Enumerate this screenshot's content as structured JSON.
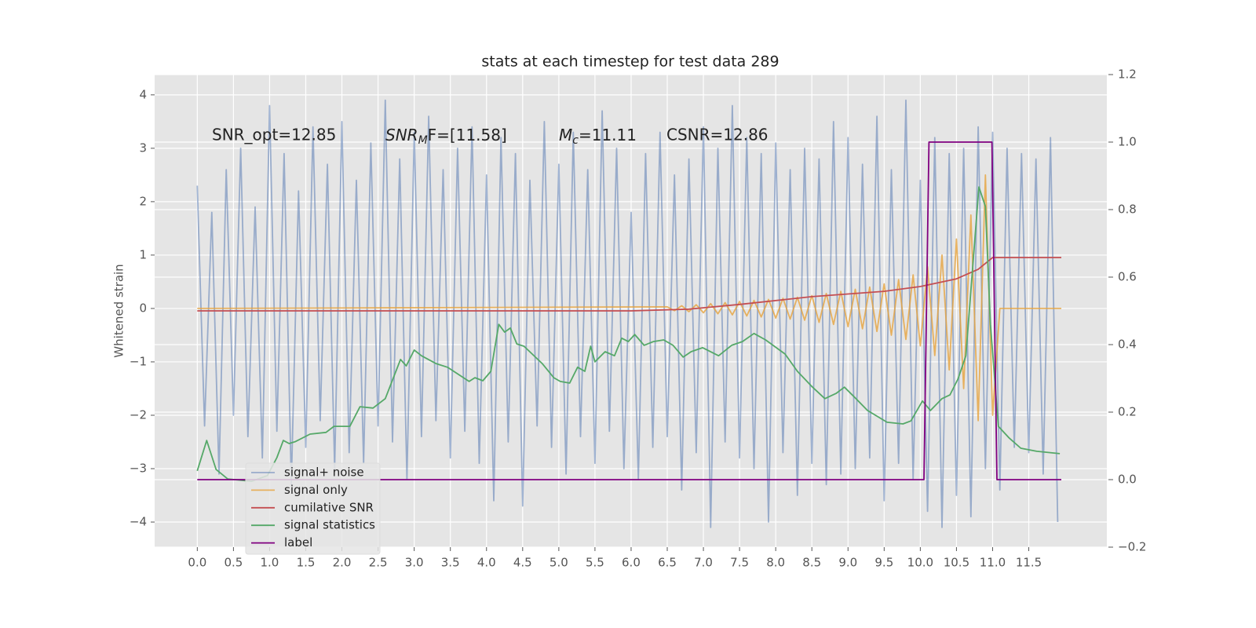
{
  "chart_data": {
    "type": "line",
    "title": "stats at each timestep for test data 289",
    "ylabel": "Whitened strain",
    "xlim": [
      -0.59,
      12.58
    ],
    "ylim": [
      -4.47,
      4.38
    ],
    "y2lim": [
      -0.2,
      1.2
    ],
    "grid": true,
    "legend": "lower left",
    "xticks": [
      {
        "value": 0,
        "label": "0.0"
      },
      0.5,
      {
        "value": 1,
        "label": "1.0"
      },
      1.5,
      {
        "value": 2,
        "label": "2.0"
      },
      2.5,
      {
        "value": 3,
        "label": "3.0"
      },
      3.5,
      {
        "value": 4,
        "label": "4.0"
      },
      4.5,
      {
        "value": 5,
        "label": "5.0"
      },
      5.5,
      {
        "value": 6,
        "label": "6.0"
      },
      6.5,
      {
        "value": 7,
        "label": "7.0"
      },
      7.5,
      {
        "value": 8,
        "label": "8.0"
      },
      8.5,
      {
        "value": 9,
        "label": "9.0"
      },
      9.5,
      {
        "value": 10,
        "label": "10.0"
      },
      10.5,
      {
        "value": 11,
        "label": "11.0"
      },
      11.5
    ],
    "yticks": [
      {
        "value": -4,
        "label": "−4"
      },
      {
        "value": -3,
        "label": "−3"
      },
      {
        "value": -2,
        "label": "−2"
      },
      {
        "value": -1,
        "label": "−1"
      },
      0,
      1,
      2,
      3,
      4
    ],
    "y2ticks": [
      {
        "value": -0.2,
        "label": "−0.2"
      },
      {
        "value": 0,
        "label": "0.0"
      },
      0.2,
      0.4,
      0.6,
      0.8,
      {
        "value": 1,
        "label": "1.0"
      },
      1.2
    ],
    "annotations": [
      {
        "text": "SNR_opt=12.85"
      },
      {
        "base": "SNR",
        "sub": "M",
        "rest": "F=[11.58]"
      },
      {
        "base": "M",
        "sub": "c",
        "rest": "=11.11"
      },
      {
        "text": "CSNR=12.86"
      }
    ],
    "series": [
      {
        "name": "signal+ noise",
        "color": "#4c72b0",
        "opacity": 0.5,
        "x": [
          0,
          0.1,
          0.2,
          0.3,
          0.4,
          0.5,
          0.6,
          0.7,
          0.8,
          0.9,
          1,
          1.1,
          1.2,
          1.3,
          1.4,
          1.5,
          1.6,
          1.7,
          1.8,
          1.9,
          2,
          2.1,
          2.2,
          2.3,
          2.4,
          2.5,
          2.6,
          2.7,
          2.8,
          2.9,
          3,
          3.1,
          3.2,
          3.3,
          3.4,
          3.5,
          3.6,
          3.7,
          3.8,
          3.9,
          4,
          4.1,
          4.2,
          4.3,
          4.4,
          4.5,
          4.6,
          4.7,
          4.8,
          4.9,
          5,
          5.1,
          5.2,
          5.3,
          5.4,
          5.5,
          5.6,
          5.7,
          5.8,
          5.9,
          6,
          6.1,
          6.2,
          6.3,
          6.4,
          6.5,
          6.6,
          6.7,
          6.8,
          6.9,
          7,
          7.1,
          7.2,
          7.3,
          7.4,
          7.5,
          7.6,
          7.7,
          7.8,
          7.9,
          8,
          8.1,
          8.2,
          8.3,
          8.4,
          8.5,
          8.6,
          8.7,
          8.8,
          8.9,
          9,
          9.1,
          9.2,
          9.3,
          9.4,
          9.5,
          9.6,
          9.7,
          9.8,
          9.9,
          10,
          10.1,
          10.2,
          10.3,
          10.4,
          10.5,
          10.6,
          10.7,
          10.8,
          10.9,
          11,
          11.1,
          11.2,
          11.3,
          11.4,
          11.5,
          11.6,
          11.7,
          11.8,
          11.9
        ],
        "values": [
          2.3,
          -2.2,
          1.8,
          -3.1,
          2.6,
          -2.0,
          3.0,
          -2.4,
          1.9,
          -2.8,
          3.8,
          -2.3,
          2.9,
          -3.3,
          2.2,
          -2.6,
          3.4,
          -2.1,
          2.7,
          -3.0,
          3.5,
          -2.7,
          2.4,
          -2.9,
          3.1,
          -2.2,
          3.9,
          -2.5,
          2.8,
          -3.2,
          3.3,
          -2.4,
          3.6,
          -2.1,
          2.6,
          -2.8,
          3.0,
          -2.3,
          3.4,
          -2.9,
          2.5,
          -3.6,
          3.2,
          -2.5,
          2.9,
          -3.7,
          2.4,
          -2.2,
          3.5,
          -2.6,
          2.7,
          -3.1,
          3.3,
          -2.4,
          2.6,
          -2.9,
          3.7,
          -2.3,
          3.0,
          -3.0,
          1.8,
          -3.2,
          2.9,
          -2.6,
          3.3,
          -2.4,
          2.5,
          -3.4,
          2.8,
          -2.7,
          3.4,
          -4.1,
          3.0,
          -2.5,
          3.8,
          -2.8,
          3.2,
          -3.0,
          2.9,
          -4.0,
          3.1,
          -2.7,
          2.6,
          -3.5,
          3.0,
          -2.9,
          2.8,
          -3.3,
          3.5,
          -3.1,
          3.2,
          -3.0,
          2.7,
          -2.8,
          3.6,
          -3.6,
          2.6,
          -2.9,
          3.9,
          -3.2,
          2.4,
          -3.8,
          3.2,
          -4.1,
          2.9,
          -3.5,
          3.0,
          -3.9,
          3.4,
          -3.0,
          3.3,
          -3.4,
          3.0,
          -2.6,
          2.9,
          -2.7,
          2.8,
          -3.1,
          3.2,
          -4.0
        ]
      },
      {
        "name": "signal only",
        "color": "#e6a23c",
        "opacity": 0.8,
        "x": [
          0,
          6.5,
          6.6,
          6.7,
          6.8,
          6.9,
          7,
          7.1,
          7.2,
          7.3,
          7.4,
          7.5,
          7.6,
          7.7,
          7.8,
          7.9,
          8,
          8.1,
          8.2,
          8.3,
          8.4,
          8.5,
          8.6,
          8.7,
          8.8,
          8.9,
          9,
          9.1,
          9.2,
          9.3,
          9.4,
          9.5,
          9.6,
          9.7,
          9.8,
          9.9,
          10,
          10.1,
          10.2,
          10.3,
          10.4,
          10.5,
          10.6,
          10.7,
          10.8,
          10.9,
          11,
          11.1,
          11.95
        ],
        "values": [
          0,
          0.03,
          -0.04,
          0.05,
          -0.06,
          0.07,
          -0.08,
          0.09,
          -0.1,
          0.11,
          -0.12,
          0.13,
          -0.14,
          0.15,
          -0.16,
          0.17,
          -0.18,
          0.19,
          -0.2,
          0.21,
          -0.22,
          0.24,
          -0.26,
          0.28,
          -0.3,
          0.32,
          -0.34,
          0.36,
          -0.38,
          0.4,
          -0.43,
          0.46,
          -0.5,
          0.54,
          -0.58,
          0.63,
          -0.7,
          0.78,
          -0.88,
          1.0,
          -1.15,
          1.3,
          -1.5,
          1.75,
          -2.1,
          2.5,
          -2.0,
          0,
          0
        ]
      },
      {
        "name": "cumilative SNR",
        "color": "#c44e52",
        "opacity": 1,
        "axis": "y2",
        "x": [
          0,
          6.0,
          6.8,
          7.5,
          8.5,
          9.5,
          10.0,
          10.5,
          10.8,
          11.0,
          11.95
        ],
        "values": [
          0.5,
          0.5,
          0.505,
          0.519,
          0.542,
          0.558,
          0.572,
          0.595,
          0.623,
          0.658,
          0.658
        ]
      },
      {
        "name": "signal statistics",
        "color": "#55a868",
        "opacity": 1,
        "axis": "y2",
        "x": [
          0,
          0.13,
          0.26,
          0.42,
          0.75,
          0.97,
          1.1,
          1.19,
          1.27,
          1.35,
          1.56,
          1.78,
          1.89,
          2.11,
          2.25,
          2.43,
          2.6,
          2.81,
          2.89,
          3.0,
          3.1,
          3.3,
          3.46,
          3.76,
          3.84,
          3.95,
          4.06,
          4.17,
          4.25,
          4.33,
          4.42,
          4.52,
          4.77,
          4.93,
          5.02,
          5.15,
          5.26,
          5.36,
          5.44,
          5.5,
          5.64,
          5.77,
          5.87,
          5.96,
          6.05,
          6.18,
          6.31,
          6.45,
          6.58,
          6.72,
          6.83,
          6.99,
          7.21,
          7.39,
          7.54,
          7.7,
          7.86,
          8.13,
          8.3,
          8.51,
          8.68,
          8.84,
          8.95,
          9.11,
          9.27,
          9.54,
          9.76,
          9.87,
          10.03,
          10.14,
          10.3,
          10.41,
          10.52,
          10.63,
          10.81,
          10.9,
          10.97,
          11.08,
          11.23,
          11.39,
          11.61,
          11.93
        ],
        "values": [
          0.026,
          0.116,
          0.03,
          0.002,
          -0.005,
          0.012,
          0.065,
          0.116,
          0.107,
          0.112,
          0.135,
          0.14,
          0.158,
          0.158,
          0.216,
          0.212,
          0.24,
          0.356,
          0.337,
          0.384,
          0.367,
          0.344,
          0.333,
          0.291,
          0.302,
          0.293,
          0.321,
          0.46,
          0.437,
          0.449,
          0.402,
          0.395,
          0.344,
          0.302,
          0.291,
          0.286,
          0.333,
          0.321,
          0.395,
          0.349,
          0.379,
          0.367,
          0.419,
          0.409,
          0.43,
          0.398,
          0.409,
          0.414,
          0.398,
          0.363,
          0.379,
          0.391,
          0.367,
          0.398,
          0.409,
          0.433,
          0.414,
          0.372,
          0.321,
          0.274,
          0.24,
          0.256,
          0.274,
          0.24,
          0.205,
          0.17,
          0.165,
          0.174,
          0.233,
          0.205,
          0.24,
          0.251,
          0.298,
          0.367,
          0.867,
          0.809,
          0.46,
          0.158,
          0.123,
          0.093,
          0.084,
          0.077
        ]
      },
      {
        "name": "label",
        "color": "#800080",
        "opacity": 1,
        "axis": "y2",
        "x": [
          0,
          10.05,
          10.12,
          10.99,
          11.06,
          11.95
        ],
        "values": [
          0,
          0,
          1,
          1,
          0,
          0
        ]
      }
    ]
  }
}
